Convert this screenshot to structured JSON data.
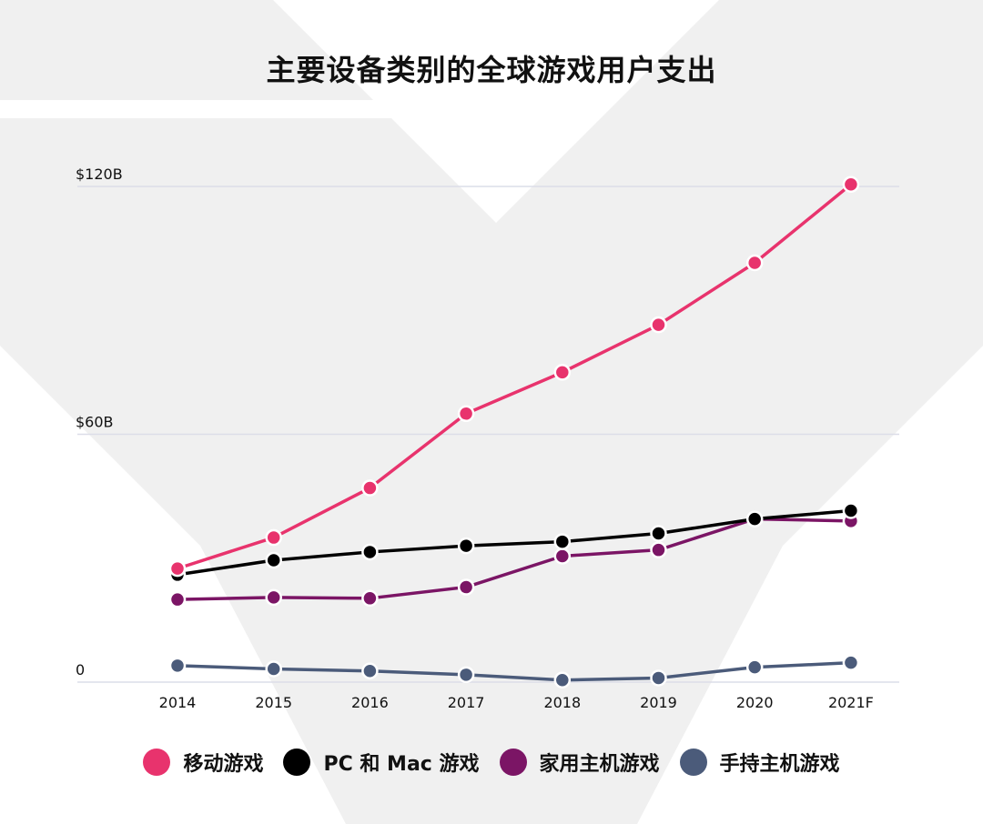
{
  "chart_data": {
    "type": "line",
    "title": "主要设备类别的全球游戏用户支出",
    "categories": [
      "2014",
      "2015",
      "2016",
      "2017",
      "2018",
      "2019",
      "2020",
      "2021F"
    ],
    "yticks": [
      {
        "value": 0,
        "label": "0"
      },
      {
        "value": 60,
        "label": "$60B"
      },
      {
        "value": 120,
        "label": "$120B"
      }
    ],
    "ylim": [
      0,
      120
    ],
    "grid": true,
    "legend_position": "bottom",
    "series": [
      {
        "name": "移动游戏",
        "color": "#e8336d",
        "values": [
          27.5,
          35,
          47,
          65,
          75,
          86.5,
          101.5,
          120.5
        ]
      },
      {
        "name": "PC 和 Mac 游戏",
        "color": "#000000",
        "values": [
          26,
          29.5,
          31.5,
          33,
          34,
          36,
          39.5,
          41.5
        ]
      },
      {
        "name": "家用主机游戏",
        "color": "#7b1565",
        "values": [
          20,
          20.5,
          20.3,
          23,
          30.5,
          32,
          39.5,
          39
        ]
      },
      {
        "name": "手持主机游戏",
        "color": "#4b5b7a",
        "values": [
          4,
          3.2,
          2.7,
          1.8,
          0.5,
          1,
          3.6,
          4.7
        ]
      }
    ]
  }
}
